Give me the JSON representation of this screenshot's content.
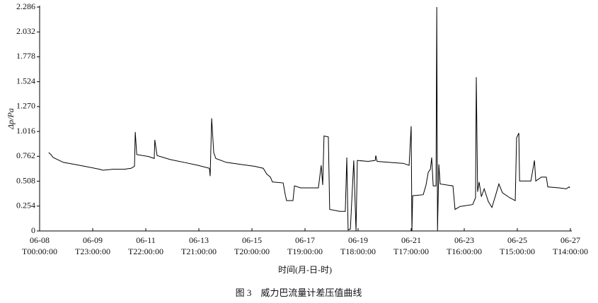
{
  "chart_data": {
    "type": "line",
    "y_label": "Δp/Pa",
    "x_label": "时间(月-日-时)",
    "caption": "图 3　威力巴流量计差压值曲线",
    "xlim": [
      "06-08T00:00:00",
      "06-27T14:00:00"
    ],
    "xticks": [
      {
        "value": "06-08T00:00:00",
        "label": [
          "06-08",
          "T00:00:00"
        ]
      },
      {
        "value": "06-09T23:00:00",
        "label": [
          "06-09",
          "T23:00:00"
        ]
      },
      {
        "value": "06-11T22:00:00",
        "label": [
          "06-11",
          "T22:00:00"
        ]
      },
      {
        "value": "06-13T21:00:00",
        "label": [
          "06-13",
          "T21:00:00"
        ]
      },
      {
        "value": "06-15T20:00:00",
        "label": [
          "06-15",
          "T20:00:00"
        ]
      },
      {
        "value": "06-17T19:00:00",
        "label": [
          "06-17",
          "T19:00:00"
        ]
      },
      {
        "value": "06-19T18:00:00",
        "label": [
          "06-19",
          "T18:00:00"
        ]
      },
      {
        "value": "06-21T17:00:00",
        "label": [
          "06-21",
          "T17:00:00"
        ]
      },
      {
        "value": "06-23T16:00:00",
        "label": [
          "06-23",
          "T16:00:00"
        ]
      },
      {
        "value": "06-25T15:00:00",
        "label": [
          "06-25",
          "T15:00:00"
        ]
      },
      {
        "value": "06-27T14:00:00",
        "label": [
          "06-27",
          "T14:00:00"
        ]
      }
    ],
    "ylim": [
      0,
      2.286
    ],
    "yticks": [
      0,
      0.254,
      0.508,
      0.762,
      1.016,
      {
        "value": 1.27,
        "label": "1.270"
      },
      1.524,
      1.778,
      2.032,
      2.286
    ],
    "series": [
      {
        "color": "#000000",
        "x": [
          "06-08T08:00",
          "06-08T10:00",
          "06-08T12:00",
          "06-08T21:00",
          "06-09T07:00",
          "06-09T16:00",
          "06-10T05:00",
          "06-10T08:00",
          "06-10T17:00",
          "06-11T03:00",
          "06-11T09:00",
          "06-11T12:00",
          "06-11T12:40",
          "06-11T14:00",
          "06-12T00:30",
          "06-12T05:30",
          "06-12T06:00",
          "06-12T08:00",
          "06-12T19:20",
          "06-13T08:00",
          "06-13T20:20",
          "06-14T06:20",
          "06-14T07:00",
          "06-14T08:20",
          "06-14T10:10",
          "06-14T12:00",
          "06-14T21:20",
          "06-15T10:00",
          "06-15T22:30",
          "06-16T06:00",
          "06-16T09:10",
          "06-16T12:20",
          "06-16T14:10",
          "06-16T23:40",
          "06-17T01:30",
          "06-17T02:40",
          "06-17T08:20",
          "06-17T09:40",
          "06-17T15:10",
          "06-18T06:50",
          "06-18T09:20",
          "06-18T10:40",
          "06-18T11:50",
          "06-18T15:40",
          "06-18T16:50",
          "06-19T01:40",
          "06-19T06:40",
          "06-19T08:00",
          "06-19T09:10",
          "06-19T11:10",
          "06-19T14:10",
          "06-19T16:10",
          "06-19T17:20",
          "06-20T02:50",
          "06-20T09:10",
          "06-20T09:40",
          "06-20T10:50",
          "06-20T21:40",
          "06-21T10:10",
          "06-21T15:10",
          "06-21T17:00",
          "06-21T17:40",
          "06-21T18:20",
          "06-22T03:40",
          "06-22T06:10",
          "06-22T08:10",
          "06-22T10:00",
          "06-22T11:10",
          "06-22T12:30",
          "06-22T15:00",
          "06-22T15:40",
          "06-22T16:20",
          "06-22T17:30",
          "06-22T18:40",
          "06-23T06:00",
          "06-23T07:50",
          "06-23T12:20",
          "06-23T23:30",
          "06-24T02:00",
          "06-24T02:40",
          "06-24T03:50",
          "06-24T05:10",
          "06-24T07:10",
          "06-24T09:40",
          "06-24T13:20",
          "06-24T16:30",
          "06-24T19:40",
          "06-24T22:40",
          "06-25T01:50",
          "06-25T08:10",
          "06-25T13:10",
          "06-25T14:20",
          "06-25T16:20",
          "06-25T17:00",
          "06-26T03:00",
          "06-26T06:10",
          "06-26T07:20",
          "06-26T12:20",
          "06-26T16:40",
          "06-26T18:00",
          "06-27T04:00",
          "06-27T10:20",
          "06-27T12:50",
          "06-27T13:30"
        ],
        "values": [
          0.8,
          0.78,
          0.75,
          0.7,
          0.68,
          0.66,
          0.63,
          0.62,
          0.63,
          0.63,
          0.64,
          0.66,
          1.01,
          0.78,
          0.76,
          0.74,
          0.93,
          0.77,
          0.73,
          0.7,
          0.67,
          0.64,
          0.56,
          1.15,
          0.8,
          0.74,
          0.7,
          0.68,
          0.66,
          0.64,
          0.58,
          0.55,
          0.5,
          0.49,
          0.37,
          0.31,
          0.31,
          0.46,
          0.44,
          0.44,
          0.67,
          0.47,
          0.97,
          0.96,
          0.22,
          0.2,
          0.2,
          0.75,
          0.01,
          0.02,
          0.72,
          0.0,
          0.72,
          0.71,
          0.72,
          0.77,
          0.71,
          0.7,
          0.69,
          0.67,
          1.07,
          0.0,
          0.36,
          0.37,
          0.47,
          0.6,
          0.63,
          0.75,
          0.46,
          0.46,
          2.286,
          0.0,
          0.68,
          0.48,
          0.46,
          0.22,
          0.25,
          0.27,
          0.34,
          1.57,
          0.4,
          0.5,
          0.35,
          0.43,
          0.3,
          0.24,
          0.36,
          0.48,
          0.39,
          0.34,
          0.31,
          0.95,
          1.0,
          0.51,
          0.51,
          0.72,
          0.51,
          0.55,
          0.55,
          0.45,
          0.44,
          0.43,
          0.45,
          0.44
        ]
      }
    ]
  }
}
